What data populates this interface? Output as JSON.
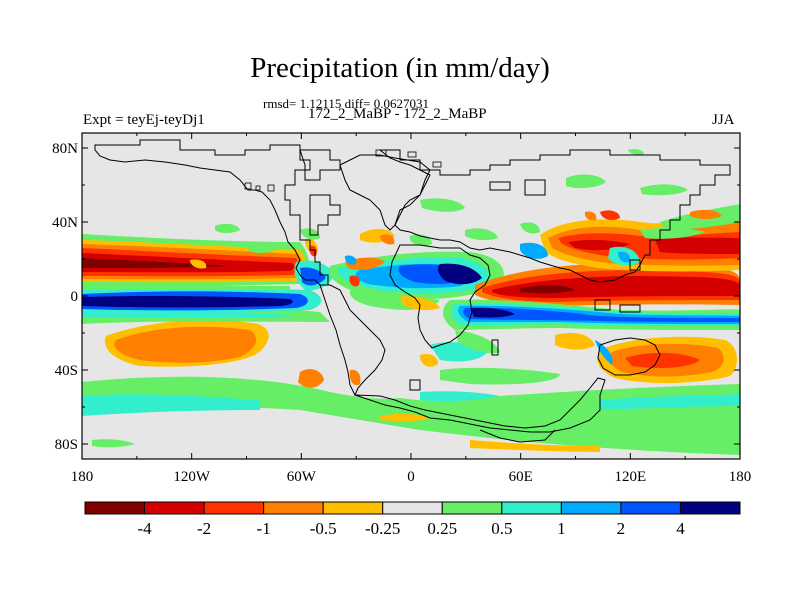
{
  "title": "Precipitation (in mm/day)",
  "stats_line": "rmsd= 1.12115 diff= 0.0627031",
  "experiment_pair": "172_2_MaBP - 172_2_MaBP",
  "left_label": "Expt = teyEj-teyDj1",
  "season": "JJA",
  "axes": {
    "x_ticks": [
      {
        "lon": -180,
        "label": "180"
      },
      {
        "lon": -120,
        "label": "120W"
      },
      {
        "lon": -60,
        "label": "60W"
      },
      {
        "lon": 0,
        "label": "0"
      },
      {
        "lon": 60,
        "label": "60E"
      },
      {
        "lon": 120,
        "label": "120E"
      },
      {
        "lon": 180,
        "label": "180"
      }
    ],
    "y_ticks": [
      {
        "lat": 80,
        "label": "80N"
      },
      {
        "lat": 40,
        "label": "40N"
      },
      {
        "lat": 0,
        "label": "0"
      },
      {
        "lat": -40,
        "label": "40S"
      },
      {
        "lat": -80,
        "label": "80S"
      }
    ]
  },
  "colorbar": {
    "colors": [
      "#800000",
      "#d40000",
      "#ff3300",
      "#ff7f00",
      "#ffbf00",
      "#e6e6e6",
      "#66ee66",
      "#33eecc",
      "#00aaff",
      "#0055ff",
      "#000080"
    ],
    "labels": [
      "-4",
      "-2",
      "-1",
      "-0.5",
      "-0.25",
      "0.25",
      "0.5",
      "1",
      "2",
      "4"
    ]
  },
  "colors": {
    "background": "#e6e6e6",
    "coast": "#000000"
  }
}
